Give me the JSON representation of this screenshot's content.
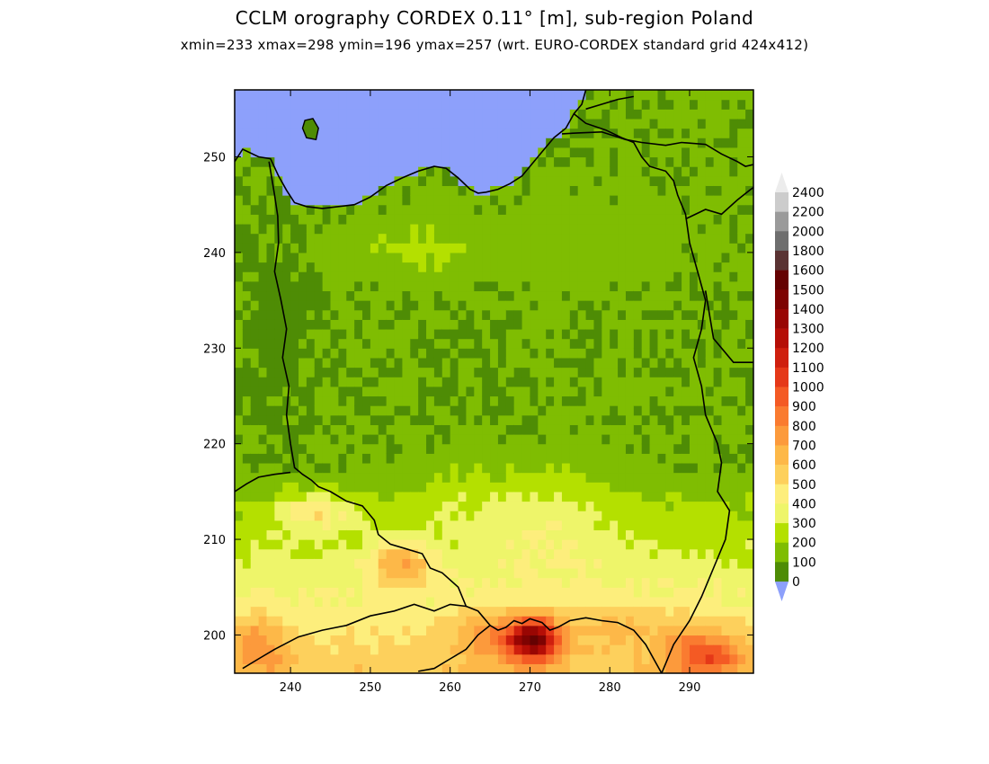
{
  "title": "CCLM orography CORDEX 0.11° [m], sub-region Poland",
  "subtitle": "xmin=233 xmax=298 ymin=196 ymax=257 (wrt. EURO-CORDEX standard grid 424x412)",
  "colors": {
    "sea": "#8da0fb",
    "frame": "#000000",
    "border": "#000000"
  },
  "chart_data": {
    "type": "heatmap",
    "title": "CCLM orography CORDEX 0.11° [m], sub-region Poland",
    "subtitle": "xmin=233 xmax=298 ymin=196 ymax=257 (wrt. EURO-CORDEX standard grid 424x412)",
    "xlim": [
      233,
      298
    ],
    "ylim": [
      196,
      257
    ],
    "xticks": [
      240,
      250,
      260,
      270,
      280,
      290
    ],
    "yticks": [
      200,
      210,
      220,
      230,
      240,
      250
    ],
    "units": "m",
    "colorbar": {
      "levels": [
        "0",
        "100",
        "200",
        "300",
        "400",
        "500",
        "600",
        "700",
        "800",
        "900",
        "1000",
        "1100",
        "1200",
        "1300",
        "1400",
        "1500",
        "1600",
        "1800",
        "2000",
        "2200",
        "2400"
      ],
      "colors": [
        "#8da0fb",
        "#4e8c05",
        "#7fbd02",
        "#b4e000",
        "#eef56a",
        "#fdee7c",
        "#fdd05c",
        "#fdb848",
        "#fc9a3c",
        "#fa7b30",
        "#f45a24",
        "#e53818",
        "#cf1f0e",
        "#b50e06",
        "#990603",
        "#7e0302",
        "#650202",
        "#5a3333",
        "#6e6e6e",
        "#9a9a9a",
        "#cccccc",
        "#ececec"
      ]
    }
  }
}
